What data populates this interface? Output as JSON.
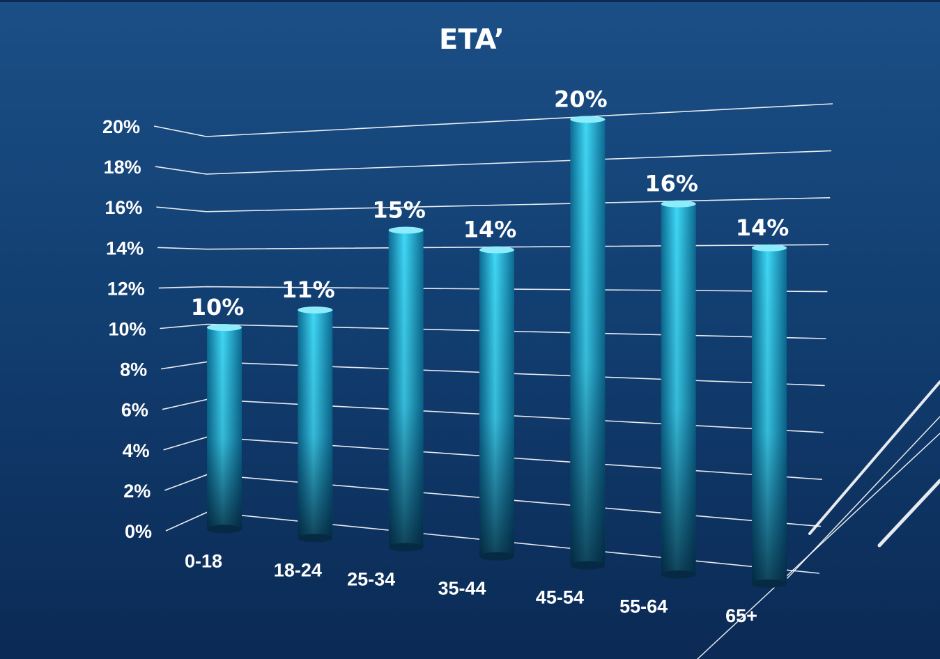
{
  "chart_data": {
    "type": "bar",
    "title": "ETA’",
    "categories": [
      "0-18",
      "18-24",
      "25-34",
      "35-44",
      "45-54",
      "55-64",
      "65+"
    ],
    "values": [
      10,
      11,
      15,
      14,
      20,
      16,
      14
    ],
    "data_labels": [
      "10%",
      "11%",
      "15%",
      "14%",
      "20%",
      "16%",
      "14%"
    ],
    "y_ticks": [
      "0%",
      "2%",
      "4%",
      "6%",
      "8%",
      "10%",
      "12%",
      "14%",
      "16%",
      "18%",
      "20%"
    ],
    "ylim": [
      0,
      20
    ],
    "grid": true,
    "legend": "none",
    "style": "3d-cylinder"
  },
  "colors": {
    "background_top": "#1b4f86",
    "background_bottom": "#0b2a55",
    "bar_light": "#3fd8f6",
    "bar_mid": "#1aa6cf",
    "bar_dark": "#0b3a5a",
    "grid": "#ffffff",
    "text": "#ffffff"
  }
}
